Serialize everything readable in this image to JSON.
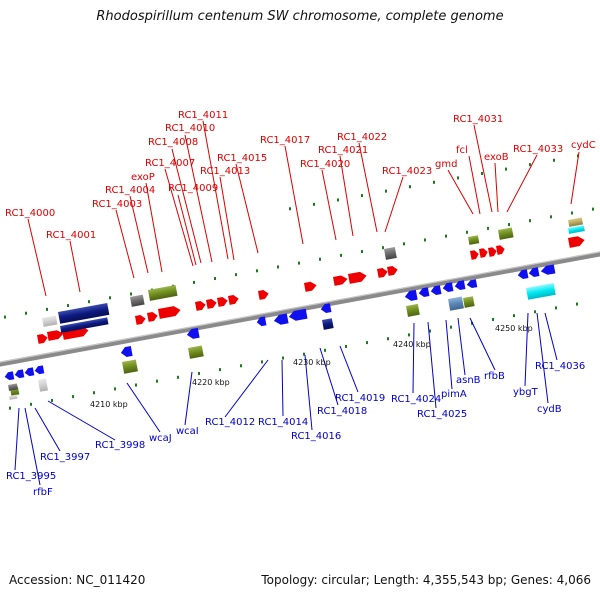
{
  "title": "Rhodospirillum centenum SW chromosome, complete genome",
  "footer": {
    "accession": "Accession: NC_011420",
    "summary": "Topology: circular; Length: 4,355,543 bp; Genes: 4,066"
  },
  "colors": {
    "label_top": "#dd0000",
    "label_bottom": "#0000cc",
    "red_gene": "#ee0000",
    "blue_gene": "#1010ee",
    "navy_gene": "#0d1a80",
    "olive_gene": "#6e8b1e",
    "gray_gene": "#6a6a6a",
    "cyan_gene": "#00e8f0",
    "backbone": "#8a8a8a",
    "tick_green": "#1f7a1f"
  },
  "scale_ticks": [
    "4210 kbp",
    "4220 kbp",
    "4230 kbp",
    "4240 kbp",
    "4250 kbp"
  ],
  "top_labels": [
    "RC1_4000",
    "RC1_4001",
    "RC1_4003",
    "RC1_4004",
    "exoP",
    "RC1_4007",
    "RC1_4008",
    "RC1_4009",
    "RC1_4010",
    "RC1_4011",
    "RC1_4013",
    "RC1_4015",
    "RC1_4017",
    "RC1_4020",
    "RC1_4021",
    "RC1_4022",
    "RC1_4023",
    "gmd",
    "fcl",
    "RC1_4031",
    "exoB",
    "RC1_4033",
    "cydC"
  ],
  "bottom_labels": [
    "RC1_3995",
    "rfbF",
    "RC1_3997",
    "RC1_3998",
    "wcaJ",
    "wcaI",
    "RC1_4012",
    "RC1_4014",
    "RC1_4016",
    "RC1_4018",
    "RC1_4019",
    "RC1_4024",
    "RC1_4025",
    "pimA",
    "asnB",
    "rfbB",
    "ybgT",
    "cydB",
    "RC1_4036"
  ]
}
